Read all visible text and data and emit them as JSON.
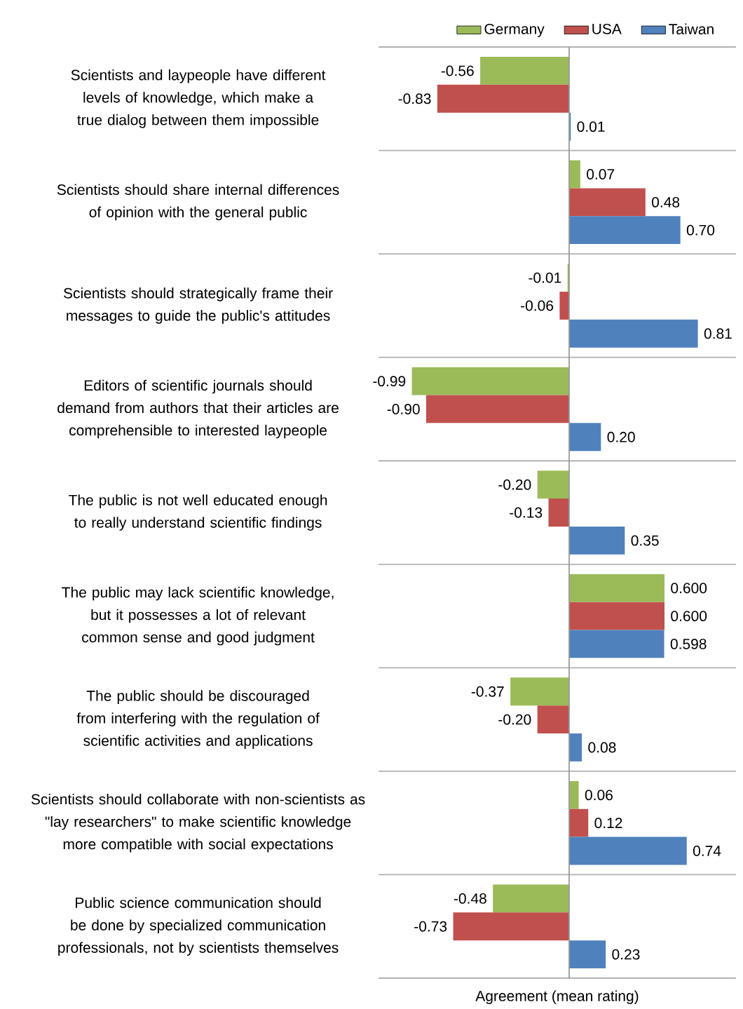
{
  "chart_data": {
    "type": "bar",
    "orientation": "horizontal",
    "categories": [
      "Scientists and laypeople have different levels of knowledge, which make a true dialog between them impossible",
      "Scientists should share internal differences of opinion with the general public",
      "Scientists should strategically frame their messages to guide the public's attitudes",
      "Editors of scientific journals should demand from authors that their articles are comprehensible to interested laypeople",
      "The public is not well educated enough to really understand scientific findings",
      "The public may lack scientific knowledge, but it possesses a lot of relevant common sense and good judgment",
      "The public should be discouraged from interfering with the regulation of scientific activities and applications",
      "Scientists should collaborate with non-scientists as \"lay researchers\" to make scientific knowledge more compatible with social expectations",
      "Public science communication should be done by specialized communication professionals, not by scientists themselves"
    ],
    "series": [
      {
        "name": "Germany",
        "color": "#9bbb59",
        "values": [
          -0.56,
          0.07,
          -0.01,
          -0.99,
          -0.2,
          0.6,
          -0.37,
          0.06,
          -0.48
        ],
        "value_labels": [
          "-0.56",
          "0.07",
          "-0.01",
          "-0.99",
          "-0.20",
          "0.600",
          "-0.37",
          "0.06",
          "-0.48"
        ]
      },
      {
        "name": "USA",
        "color": "#c0504d",
        "values": [
          -0.83,
          0.48,
          -0.06,
          -0.9,
          -0.13,
          0.6,
          -0.2,
          0.12,
          -0.73
        ],
        "value_labels": [
          "-0.83",
          "0.48",
          "-0.06",
          "-0.90",
          "-0.13",
          "0.600",
          "-0.20",
          "0.12",
          "-0.73"
        ]
      },
      {
        "name": "Taiwan",
        "color": "#4f81bd",
        "values": [
          0.01,
          0.7,
          0.81,
          0.2,
          0.35,
          0.598,
          0.08,
          0.74,
          0.23
        ],
        "value_labels": [
          "0.01",
          "0.70",
          "0.81",
          "0.20",
          "0.35",
          "0.598",
          "0.08",
          "0.74",
          "0.23"
        ]
      }
    ],
    "xlim": [
      -1.2,
      1.05
    ],
    "xlabel": "Agreement (mean rating)",
    "grid": "y",
    "legend": "top right",
    "tick_labels": "y"
  }
}
